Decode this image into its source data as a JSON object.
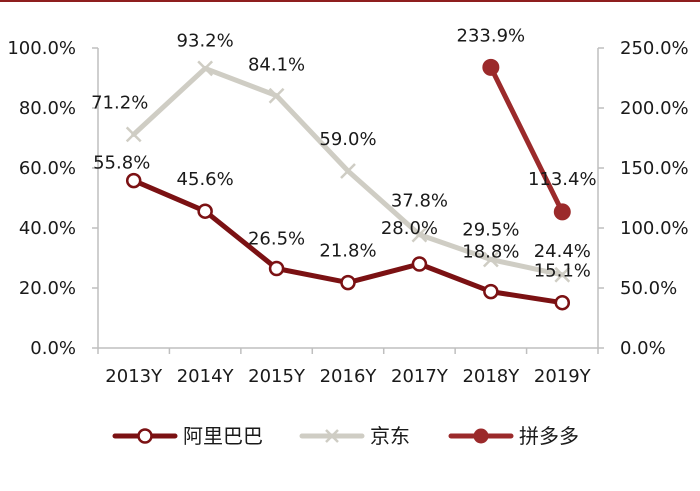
{
  "chart_data": {
    "type": "line",
    "categories": [
      "2013Y",
      "2014Y",
      "2015Y",
      "2016Y",
      "2017Y",
      "2018Y",
      "2019Y"
    ],
    "left_axis": {
      "ylim": [
        0,
        100
      ],
      "ticks": [
        0,
        20,
        40,
        60,
        80,
        100
      ],
      "tick_labels": [
        "0.0%",
        "20.0%",
        "40.0%",
        "60.0%",
        "80.0%",
        "100.0%"
      ]
    },
    "right_axis": {
      "ylim": [
        0,
        250
      ],
      "ticks": [
        0,
        50,
        100,
        150,
        200,
        250
      ],
      "tick_labels": [
        "0.0%",
        "50.0%",
        "100.0%",
        "150.0%",
        "200.0%",
        "250.0%"
      ]
    },
    "series": [
      {
        "name": "阿里巴巴",
        "axis": "left",
        "color": "#7b1113",
        "marker": "circle-open",
        "values": [
          55.8,
          45.6,
          26.5,
          21.8,
          28.0,
          18.8,
          15.1
        ],
        "labels": [
          "55.8%",
          "45.6%",
          "26.5%",
          "21.8%",
          "28.0%",
          "18.8%",
          "15.1%"
        ]
      },
      {
        "name": "京东",
        "axis": "left",
        "color": "#cfcdc4",
        "marker": "x",
        "values": [
          71.2,
          93.2,
          84.1,
          59.0,
          37.8,
          29.5,
          24.4
        ],
        "labels": [
          "71.2%",
          "93.2%",
          "84.1%",
          "59.0%",
          "37.8%",
          "29.5%",
          "24.4%"
        ]
      },
      {
        "name": "拼多多",
        "axis": "right",
        "color": "#9b2a2b",
        "marker": "circle-filled",
        "values": [
          null,
          null,
          null,
          null,
          null,
          233.9,
          113.4
        ],
        "labels": [
          null,
          null,
          null,
          null,
          null,
          "233.9%",
          "113.4%"
        ]
      }
    ],
    "legend": {
      "position": "bottom"
    },
    "grid": false
  }
}
